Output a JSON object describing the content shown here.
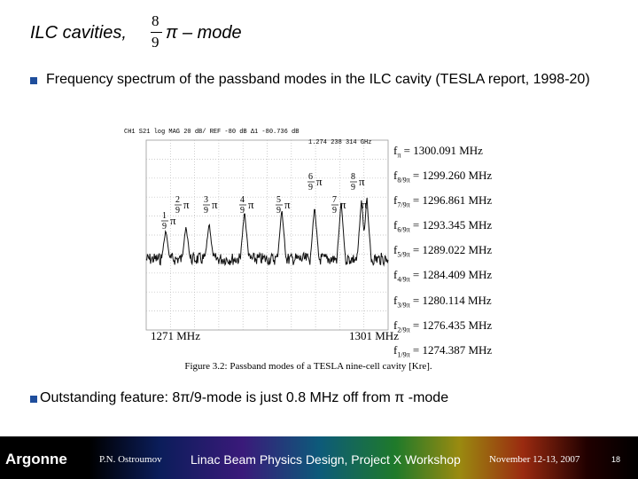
{
  "header": {
    "title": "ILC cavities,",
    "fraction_numerator": "8",
    "fraction_denominator": "9",
    "title_suffix": "π – mode"
  },
  "bullets": [
    "Frequency spectrum of the passband modes in the ILC cavity (TESLA report, 1998-20)",
    "Outstanding feature: 8π/9-mode is just 0.8 MHz off from π -mode"
  ],
  "figure": {
    "x_start": "1271 MHz",
    "x_end": "1301 MHz",
    "caption": "Figure 3.2:  Passband modes of a TESLA nine-cell cavity [Kre].",
    "mode_labels": [
      {
        "num": "1",
        "den": "9",
        "sym": "π"
      },
      {
        "num": "2",
        "den": "9",
        "sym": "π"
      },
      {
        "num": "3",
        "den": "9",
        "sym": "π"
      },
      {
        "num": "4",
        "den": "9",
        "sym": "π"
      },
      {
        "num": "5",
        "den": "9",
        "sym": "π"
      },
      {
        "num": "6",
        "den": "9",
        "sym": "π"
      },
      {
        "num": "7",
        "den": "9",
        "sym": "π"
      },
      {
        "num": "8",
        "den": "9",
        "sym": "π"
      },
      {
        "num": null,
        "den": null,
        "sym": "π"
      }
    ],
    "frequencies": [
      {
        "name": "f",
        "sub": "π",
        "value": "= 1300.091 MHz"
      },
      {
        "name": "f",
        "sub": "8/9π",
        "value": "= 1299.260 MHz"
      },
      {
        "name": "f",
        "sub": "7/9π",
        "value": "= 1296.861 MHz"
      },
      {
        "name": "f",
        "sub": "6/9π",
        "value": "= 1293.345 MHz"
      },
      {
        "name": "f",
        "sub": "5/9π",
        "value": "= 1289.022 MHz"
      },
      {
        "name": "f",
        "sub": "4/9π",
        "value": "= 1284.409 MHz"
      },
      {
        "name": "f",
        "sub": "3/9π",
        "value": "= 1280.114 MHz"
      },
      {
        "name": "f",
        "sub": "2/9π",
        "value": "= 1276.435 MHz"
      },
      {
        "name": "f",
        "sub": "1/9π",
        "value": "= 1274.387 MHz"
      }
    ]
  },
  "footer": {
    "logo": "Argonne",
    "presenter": "P.N. Ostroumov",
    "event": "Linac Beam Physics Design, Project X Workshop",
    "date": "November 12-13, 2007",
    "page": "18"
  }
}
